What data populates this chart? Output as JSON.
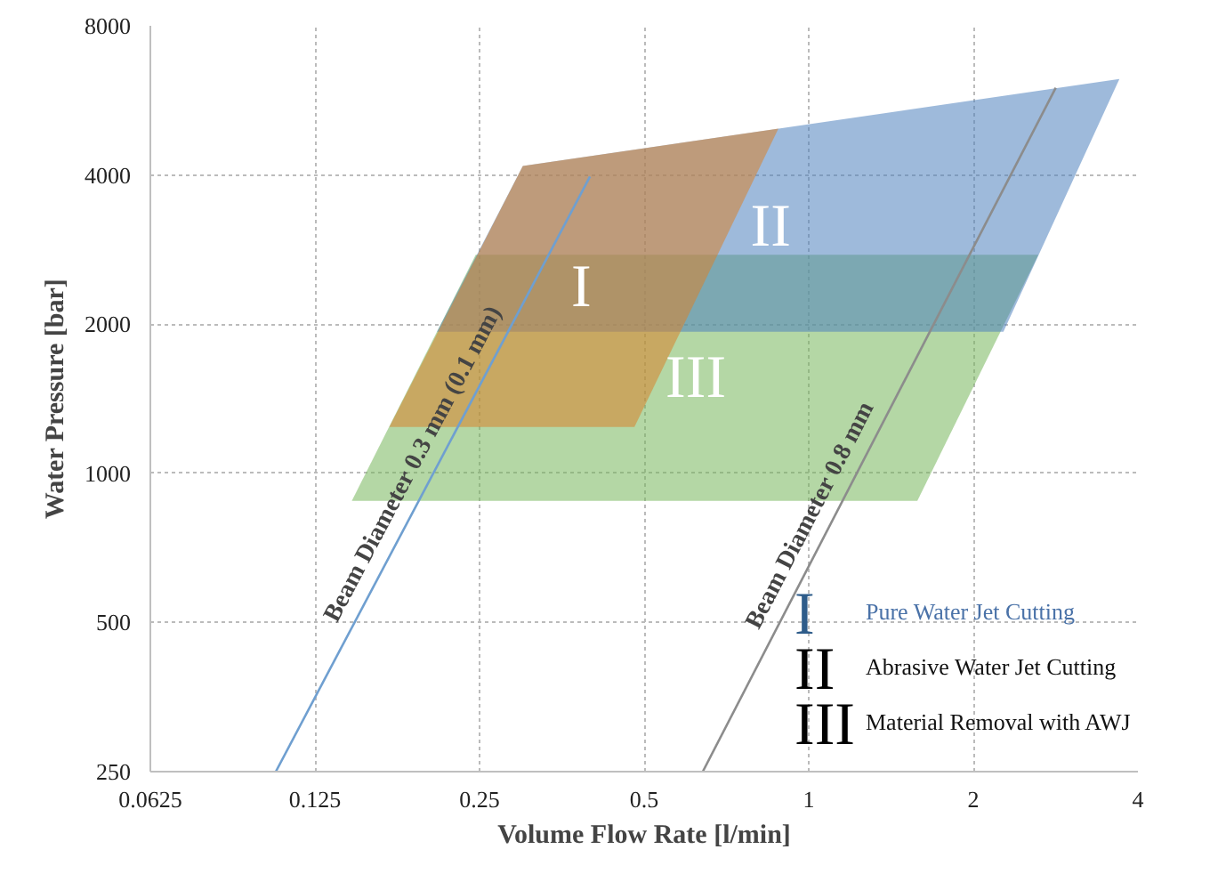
{
  "chart_data": {
    "type": "area",
    "xlabel": "Volume Flow Rate [l/min]",
    "ylabel": "Water Pressure [bar]",
    "log": "xy",
    "xlim": [
      0.0625,
      4
    ],
    "ylim": [
      250,
      8000
    ],
    "xticks": [
      0.0625,
      0.125,
      0.25,
      0.5,
      1,
      2,
      4
    ],
    "yticks": [
      250,
      500,
      1000,
      2000,
      4000,
      8000
    ],
    "grid": true,
    "series": [
      {
        "color": "#77b65b",
        "x": [
          0.146,
          0.246,
          2.63,
          1.58
        ],
        "values": [
          880,
          2760,
          2760,
          880
        ]
      },
      {
        "color": "#4f81bd",
        "x": [
          0.209,
          0.3,
          3.7,
          2.27
        ],
        "values": [
          1930,
          4170,
          6250,
          1930
        ]
      },
      {
        "color": "#d9822b",
        "x": [
          0.171,
          0.3,
          0.88,
          0.48
        ],
        "values": [
          1240,
          4170,
          4960,
          1240
        ]
      },
      {
        "type": "line",
        "color": "#6f9fd0",
        "x": [
          0.106,
          0.398
        ],
        "values": [
          250,
          3970
        ]
      },
      {
        "type": "line",
        "color": "#8c8c8c",
        "x": [
          0.64,
          2.83
        ],
        "values": [
          250,
          6000
        ]
      }
    ],
    "annotations": [
      "III",
      "II",
      "I",
      "Beam Diameter 0.3 mm (0.1 mm)",
      "Beam Diameter 0.8 mm",
      "Pure Water Jet Cutting",
      "Abrasive Water Jet Cutting",
      "Material Removal with AWJ"
    ]
  }
}
